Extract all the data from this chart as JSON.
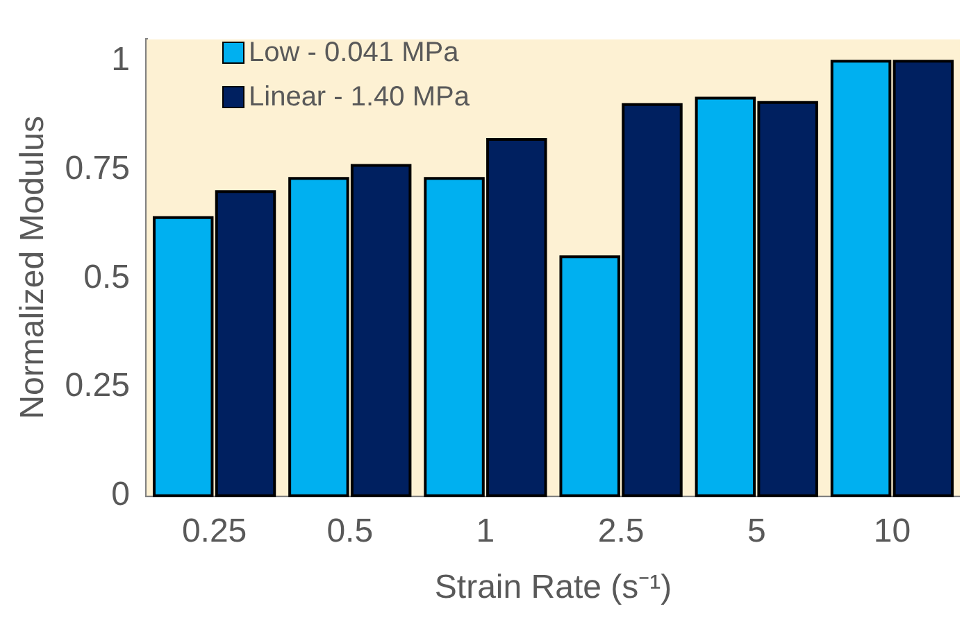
{
  "chart_data": {
    "type": "bar",
    "xlabel": "Strain Rate (s⁻¹)",
    "ylabel": "Normalized Modulus",
    "categories": [
      "0.25",
      "0.5",
      "1",
      "2.5",
      "5",
      "10"
    ],
    "series": [
      {
        "name": "Low - 0.041 MPa",
        "color": "#00b0f0",
        "values": [
          0.64,
          0.73,
          0.73,
          0.55,
          0.915,
          1.0
        ]
      },
      {
        "name": "Linear - 1.40 MPa",
        "color": "#002060",
        "values": [
          0.7,
          0.76,
          0.82,
          0.9,
          0.905,
          1.0
        ]
      }
    ],
    "bands": [
      {
        "axis": "y",
        "from": 0,
        "to": 1.05,
        "color": "#fdf1d3"
      }
    ],
    "ylim": [
      0,
      1.05
    ],
    "yticks": [
      0,
      0.25,
      0.5,
      0.75,
      1
    ],
    "grid": false,
    "legend": "top left"
  }
}
